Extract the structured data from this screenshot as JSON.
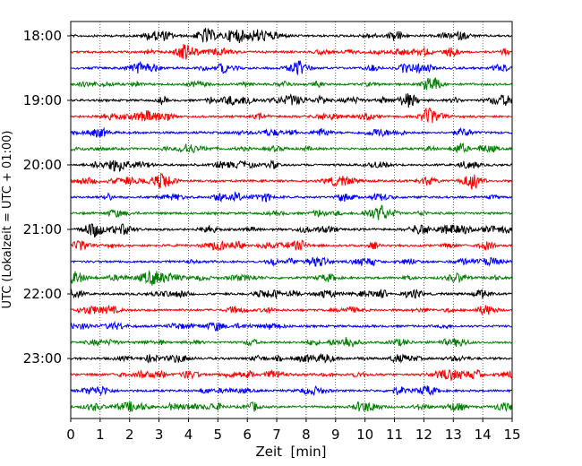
{
  "chart_data": {
    "type": "line",
    "title": "",
    "xlabel": "Zeit  [min]",
    "ylabel": "UTC (Lokalzeit = UTC + 01:00)",
    "xlim": [
      0,
      15
    ],
    "x_ticks": [
      "0",
      "1",
      "2",
      "3",
      "4",
      "5",
      "6",
      "7",
      "8",
      "9",
      "10",
      "11",
      "12",
      "13",
      "14",
      "15"
    ],
    "y_ticks": [
      "18:00",
      "19:00",
      "20:00",
      "21:00",
      "22:00",
      "23:00"
    ],
    "grid": "vertical dotted lines at each minute",
    "trace_interval_minutes": 15,
    "trace_start": "18:00",
    "trace_count": 24,
    "trace_colors": [
      "#000000",
      "#ff0000",
      "#0000ff",
      "#008000"
    ],
    "traces": [
      {
        "start": "18:00",
        "color": "#000000"
      },
      {
        "start": "18:15",
        "color": "#ff0000"
      },
      {
        "start": "18:30",
        "color": "#0000ff"
      },
      {
        "start": "18:45",
        "color": "#008000"
      },
      {
        "start": "19:00",
        "color": "#000000"
      },
      {
        "start": "19:15",
        "color": "#ff0000"
      },
      {
        "start": "19:30",
        "color": "#0000ff"
      },
      {
        "start": "19:45",
        "color": "#008000"
      },
      {
        "start": "20:00",
        "color": "#000000"
      },
      {
        "start": "20:15",
        "color": "#ff0000"
      },
      {
        "start": "20:30",
        "color": "#0000ff"
      },
      {
        "start": "20:45",
        "color": "#008000"
      },
      {
        "start": "21:00",
        "color": "#000000"
      },
      {
        "start": "21:15",
        "color": "#ff0000"
      },
      {
        "start": "21:30",
        "color": "#0000ff"
      },
      {
        "start": "21:45",
        "color": "#008000"
      },
      {
        "start": "22:00",
        "color": "#000000"
      },
      {
        "start": "22:15",
        "color": "#ff0000"
      },
      {
        "start": "22:30",
        "color": "#0000ff"
      },
      {
        "start": "22:45",
        "color": "#008000"
      },
      {
        "start": "23:00",
        "color": "#000000"
      },
      {
        "start": "23:15",
        "color": "#ff0000"
      },
      {
        "start": "23:30",
        "color": "#0000ff"
      },
      {
        "start": "23:45",
        "color": "#008000"
      }
    ]
  }
}
